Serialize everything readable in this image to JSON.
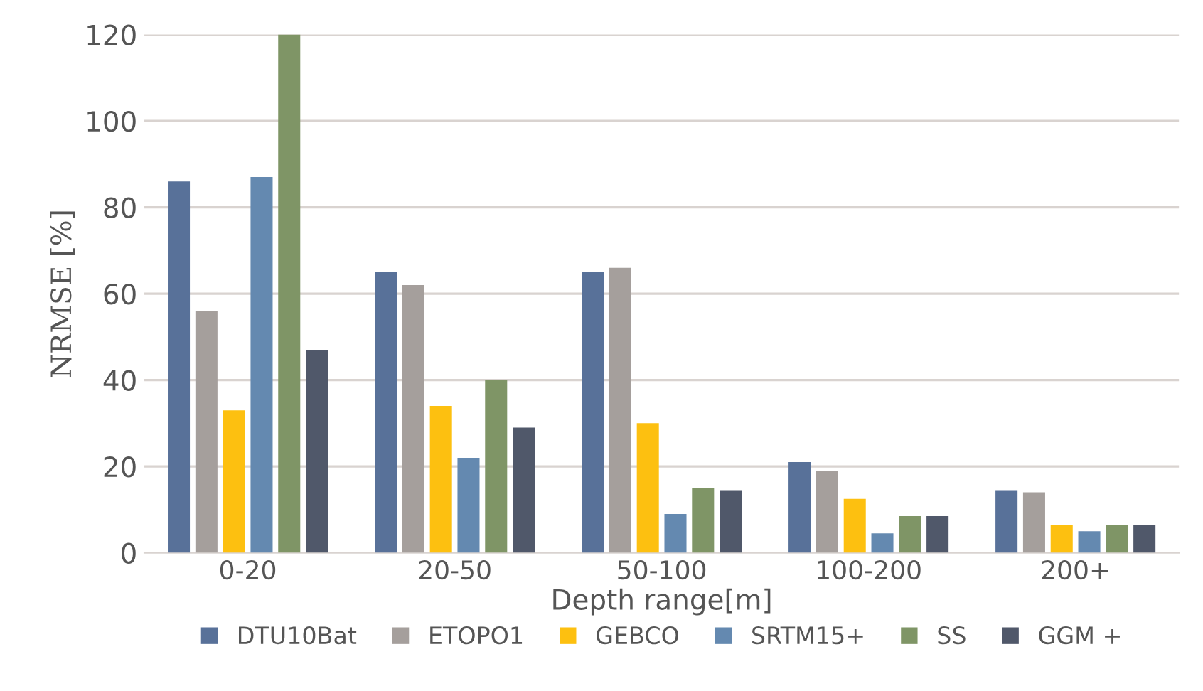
{
  "chart_data": {
    "type": "bar",
    "xlabel": "Depth range[m]",
    "ylabel": "NRMSE [%]",
    "categories": [
      "0-20",
      "20-50",
      "50-100",
      "100-200",
      "200+"
    ],
    "series": [
      {
        "name": "DTU10Bat",
        "color": "#587199",
        "values": [
          86,
          65,
          65,
          21,
          14.5
        ]
      },
      {
        "name": "ETOPO1",
        "color": "#a59f9c",
        "values": [
          56,
          62,
          66,
          19,
          14
        ]
      },
      {
        "name": "GEBCO",
        "color": "#fdc010",
        "values": [
          33,
          34,
          30,
          12.5,
          6.5
        ]
      },
      {
        "name": "SRTM15+",
        "color": "#6489b0",
        "values": [
          87,
          22,
          9,
          4.5,
          5
        ]
      },
      {
        "name": "SS",
        "color": "#7f9566",
        "values": [
          120,
          40,
          15,
          8.5,
          6.5
        ]
      },
      {
        "name": "GGM +",
        "color": "#50586a",
        "values": [
          47,
          29,
          14.5,
          8.5,
          6.5
        ]
      }
    ],
    "ylim": [
      0,
      120
    ],
    "yticks": [
      0,
      20,
      40,
      60,
      80,
      100,
      120
    ],
    "grid": "y",
    "legend": "bottom"
  }
}
